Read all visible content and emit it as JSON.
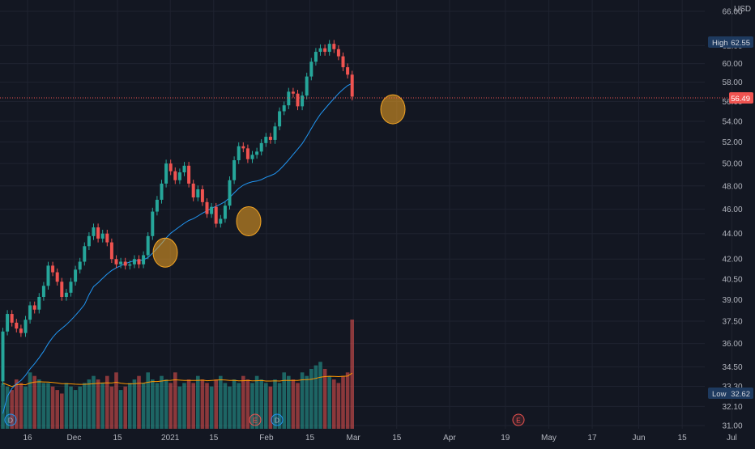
{
  "header": {
    "currency": "USD"
  },
  "badges": {
    "high_label": "High",
    "high_value": "62.55",
    "last_value": "56.49",
    "low_label": "Low",
    "low_value": "32.62"
  },
  "events": [
    {
      "label": "D",
      "x": "2020-11-12"
    },
    {
      "label": "E",
      "x": "2021-02-01"
    },
    {
      "label": "D",
      "x": "2021-02-10"
    },
    {
      "label": "E",
      "x": "2021-05-05"
    }
  ],
  "colors": {
    "up": "#26a69a",
    "down": "#ef5350",
    "ma": "#2196f3",
    "vol_ma": "#ff9800",
    "highlight": "#f5a623",
    "bg": "#131722"
  },
  "chart_data": {
    "type": "candlestick",
    "y_scale": "log",
    "y_ticks": [
      31.0,
      32.1,
      33.3,
      34.5,
      36.0,
      37.5,
      39.0,
      40.5,
      42.0,
      44.0,
      46.0,
      48.0,
      50.0,
      52.0,
      54.0,
      56.0,
      58.0,
      60.0,
      62.0,
      66.0
    ],
    "y_tick_labels": [
      "31.00",
      "32.10",
      "33.30",
      "34.50",
      "36.00",
      "37.50",
      "39.00",
      "40.50",
      "42.00",
      "44.00",
      "46.00",
      "48.00",
      "50.00",
      "52.00",
      "54.00",
      "56.00",
      "58.00",
      "60.00",
      "62.00",
      "66.00"
    ],
    "x_tick_labels": [
      {
        "label": "16",
        "date": "2020-11-16"
      },
      {
        "label": "Dec",
        "date": "2020-12-01"
      },
      {
        "label": "15",
        "date": "2020-12-15"
      },
      {
        "label": "2021",
        "date": "2021-01-01"
      },
      {
        "label": "15",
        "date": "2021-01-15"
      },
      {
        "label": "Feb",
        "date": "2021-02-01"
      },
      {
        "label": "15",
        "date": "2021-02-15"
      },
      {
        "label": "Mar",
        "date": "2021-03-01"
      },
      {
        "label": "15",
        "date": "2021-03-15"
      },
      {
        "label": "Apr",
        "date": "2021-04-01"
      },
      {
        "label": "19",
        "date": "2021-04-19"
      },
      {
        "label": "May",
        "date": "2021-05-03"
      },
      {
        "label": "17",
        "date": "2021-05-17"
      },
      {
        "label": "Jun",
        "date": "2021-06-01"
      },
      {
        "label": "15",
        "date": "2021-06-15"
      },
      {
        "label": "Jul",
        "date": "2021-07-01"
      }
    ],
    "last_price": 56.49,
    "highlight_dates": [
      "2021-01-01",
      "2021-02-01",
      "2021-03-23"
    ],
    "close_start": 33.6,
    "closes": [
      36.8,
      38.0,
      37.4,
      37.0,
      36.7,
      37.6,
      38.6,
      38.3,
      39.2,
      40.0,
      41.5,
      41.0,
      40.3,
      39.2,
      39.5,
      40.3,
      41.2,
      41.8,
      43.0,
      43.8,
      44.5,
      43.6,
      44.0,
      43.3,
      42.0,
      41.6,
      41.8,
      41.5,
      41.6,
      42.0,
      41.6,
      42.3,
      43.8,
      45.8,
      46.8,
      48.2,
      50.0,
      49.3,
      48.5,
      49.2,
      49.8,
      48.2,
      47.0,
      47.7,
      46.6,
      45.6,
      46.2,
      44.8,
      45.2,
      46.3,
      48.5,
      50.3,
      51.6,
      51.4,
      50.4,
      50.8,
      51.1,
      51.9,
      52.5,
      52.2,
      53.5,
      55.0,
      55.6,
      57.0,
      56.8,
      55.5,
      56.6,
      58.6,
      60.2,
      61.3,
      61.7,
      61.3,
      62.2,
      61.6,
      60.8,
      59.6,
      58.8,
      56.49
    ],
    "volumes": [
      1.3,
      1.2,
      1.1,
      1.4,
      1.3,
      1.2,
      1.6,
      1.5,
      1.4,
      1.3,
      1.3,
      1.2,
      1.1,
      1.0,
      1.3,
      1.2,
      1.1,
      1.2,
      1.3,
      1.4,
      1.5,
      1.4,
      1.3,
      1.5,
      1.2,
      1.6,
      1.1,
      1.2,
      1.3,
      1.4,
      1.5,
      1.3,
      1.6,
      1.4,
      1.3,
      1.5,
      1.4,
      1.3,
      1.6,
      1.2,
      1.3,
      1.4,
      1.3,
      1.5,
      1.4,
      1.3,
      1.2,
      1.4,
      1.5,
      1.3,
      1.2,
      1.4,
      1.3,
      1.5,
      1.4,
      1.3,
      1.5,
      1.4,
      1.3,
      1.2,
      1.4,
      1.3,
      1.6,
      1.5,
      1.4,
      1.3,
      1.6,
      1.5,
      1.7,
      1.8,
      1.9,
      1.7,
      1.5,
      1.4,
      1.3,
      1.5,
      1.6,
      3.1
    ],
    "ma_period": 20,
    "volume_ma_period": 20
  }
}
